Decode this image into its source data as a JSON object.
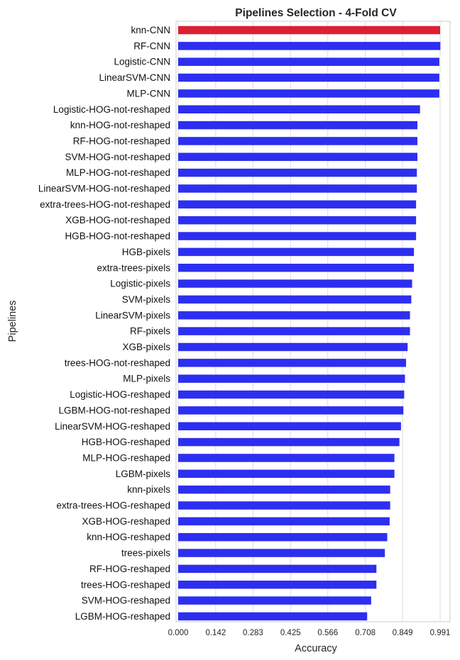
{
  "chart_data": {
    "type": "bar",
    "orientation": "horizontal",
    "title": "Pipelines Selection - 4-Fold CV",
    "xlabel": "Accuracy",
    "ylabel": "Pipelines",
    "xlim": [
      0,
      1.0
    ],
    "xticks": [
      "0.000",
      "0.142",
      "0.283",
      "0.425",
      "0.566",
      "0.708",
      "0.849",
      "0.991"
    ],
    "grid": "vertical",
    "colors": {
      "highlight": "#dc2032",
      "default": "#2e2ef0"
    },
    "categories": [
      "knn-CNN",
      "RF-CNN",
      "Logistic-CNN",
      "LinearSVM-CNN",
      "MLP-CNN",
      "Logistic-HOG-not-reshaped",
      "knn-HOG-not-reshaped",
      "RF-HOG-not-reshaped",
      "SVM-HOG-not-reshaped",
      "MLP-HOG-not-reshaped",
      "LinearSVM-HOG-not-reshaped",
      "extra-trees-HOG-not-reshaped",
      "XGB-HOG-not-reshaped",
      "HGB-HOG-not-reshaped",
      "HGB-pixels",
      "extra-trees-pixels",
      "Logistic-pixels",
      "SVM-pixels",
      "LinearSVM-pixels",
      "RF-pixels",
      "XGB-pixels",
      "trees-HOG-not-reshaped",
      "MLP-pixels",
      "Logistic-HOG-reshaped",
      "LGBM-HOG-not-reshaped",
      "LinearSVM-HOG-reshaped",
      "HGB-HOG-reshaped",
      "MLP-HOG-reshaped",
      "LGBM-pixels",
      "knn-pixels",
      "extra-trees-HOG-reshaped",
      "XGB-HOG-reshaped",
      "knn-HOG-reshaped",
      "trees-pixels",
      "RF-HOG-reshaped",
      "trees-HOG-reshaped",
      "SVM-HOG-reshaped",
      "LGBM-HOG-reshaped"
    ],
    "values": [
      0.991,
      0.992,
      0.988,
      0.988,
      0.988,
      0.915,
      0.905,
      0.905,
      0.905,
      0.903,
      0.903,
      0.9,
      0.9,
      0.9,
      0.892,
      0.892,
      0.885,
      0.882,
      0.877,
      0.877,
      0.868,
      0.862,
      0.858,
      0.855,
      0.852,
      0.843,
      0.837,
      0.818,
      0.818,
      0.802,
      0.802,
      0.8,
      0.791,
      0.782,
      0.75,
      0.75,
      0.73,
      0.715
    ],
    "highlight_index": 0
  }
}
